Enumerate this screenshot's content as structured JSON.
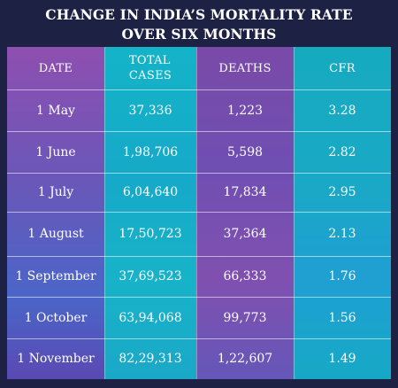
{
  "title": {
    "line1": "CHANGE IN INDIA’S MORTALITY RATE",
    "line2": "OVER SIX MONTHS"
  },
  "table": {
    "headers": {
      "date": "DATE",
      "total_cases_line1": "TOTAL",
      "total_cases_line2": "CASES",
      "deaths": "DEATHS",
      "cfr": "CFR"
    },
    "rows": [
      {
        "date": "1 May",
        "total_cases": "37,336",
        "deaths": "1,223",
        "cfr": "3.28"
      },
      {
        "date": "1 June",
        "total_cases": "1,98,706",
        "deaths": "5,598",
        "cfr": "2.82"
      },
      {
        "date": "1 July",
        "total_cases": "6,04,640",
        "deaths": "17,834",
        "cfr": "2.95"
      },
      {
        "date": "1 August",
        "total_cases": "17,50,723",
        "deaths": "37,364",
        "cfr": "2.13"
      },
      {
        "date": "1 September",
        "total_cases": "37,69,523",
        "deaths": "66,333",
        "cfr": "1.76"
      },
      {
        "date": "1 October",
        "total_cases": "63,94,068",
        "deaths": "99,773",
        "cfr": "1.56"
      },
      {
        "date": "1 November",
        "total_cases": "82,29,313",
        "deaths": "1,22,607",
        "cfr": "1.49"
      }
    ]
  },
  "colors": {
    "background": "#1d2244",
    "purple_column": "#7a4fb2",
    "teal_column": "#16aac6",
    "text": "#ffffff"
  }
}
